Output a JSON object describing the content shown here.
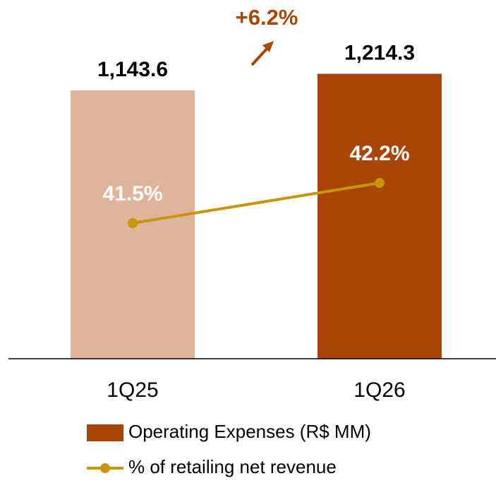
{
  "chart_data": {
    "type": "bar_line",
    "categories": [
      "1Q25",
      "1Q26"
    ],
    "annotation": "+6.2%",
    "series": [
      {
        "name": "Operating Expenses (R$ MM)",
        "color": "#a84507",
        "bar_colors": [
          "#dfb49a",
          "#a84507"
        ],
        "values": [
          1143.6,
          1214.3
        ],
        "value_labels": [
          "1,143.6",
          "1,214.3"
        ]
      },
      {
        "name": "% of retailing net revenue",
        "color": "#c8960c",
        "axis": "y2",
        "values": [
          41.5,
          42.2
        ],
        "value_labels": [
          "41.5%",
          "42.2%"
        ]
      }
    ],
    "ylim": [
      0,
      1300
    ],
    "y2lim": [
      39.14,
      44.45
    ],
    "legend": "bottom"
  }
}
